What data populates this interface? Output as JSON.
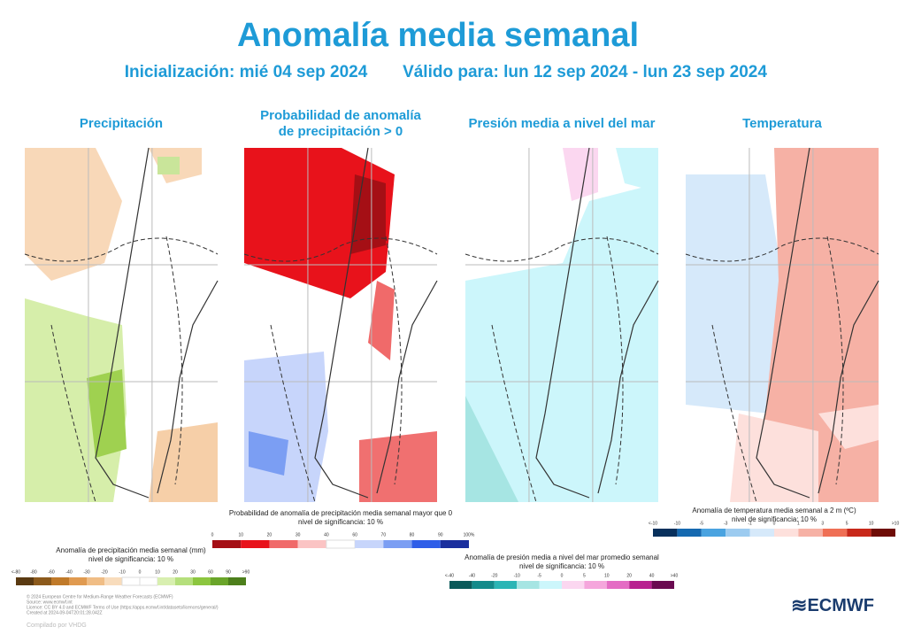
{
  "header": {
    "title": "Anomalía media semanal",
    "init": "Inicialización: mié 04 sep 2024",
    "valid": "Válido para: lun 12 sep 2024 - lun 23 sep 2024"
  },
  "panels": [
    {
      "title": "Precipitación",
      "legend": "Anomalía de precipitación media semanal (mm)",
      "sig": "nivel de significancia: 10 %",
      "ticks": [
        "<-80",
        "-80",
        "-60",
        "-40",
        "-30",
        "-20",
        "-10",
        "0",
        "10",
        "20",
        "30",
        "60",
        "90",
        ">90"
      ],
      "colors": [
        "#5a3a12",
        "#8c5a1c",
        "#c07a2a",
        "#e09a50",
        "#f0bd85",
        "#f8dcbc",
        "#ffffff",
        "#ffffff",
        "#d8efb0",
        "#b5df7c",
        "#8cc63f",
        "#6aa52a",
        "#4d7f1c"
      ]
    },
    {
      "title": "Probabilidad de anomalía de precipitación > 0",
      "legend": "Probabilidad de anomalía de precipitación media semanal mayor que 0",
      "sig": "nivel de significancia: 10 %",
      "ticks": [
        "0",
        "10",
        "20",
        "30",
        "40",
        "60",
        "70",
        "80",
        "90",
        "100%"
      ],
      "colors": [
        "#a50f15",
        "#e8121b",
        "#f06a6a",
        "#fbc4c4",
        "#ffffff",
        "#c7d5fb",
        "#7b9ef3",
        "#2f5ee8",
        "#1a2f9e"
      ]
    },
    {
      "title": "Presión media a nivel del mar",
      "legend": "Anomalía de presión media a nivel del mar promedio semanal",
      "sig": "nivel de significancia: 10 %",
      "ticks": [
        "<-40",
        "-40",
        "-20",
        "-10",
        "-5",
        "0",
        "5",
        "10",
        "20",
        "40",
        ">40"
      ],
      "colors": [
        "#0b5a5a",
        "#138a8a",
        "#2bb5b5",
        "#a6e5e3",
        "#ccf6fb",
        "#fbd7f0",
        "#f5a6dc",
        "#e46cc4",
        "#b8208f",
        "#6a0a50"
      ]
    },
    {
      "title": "Temperatura",
      "legend": "Anomalía de temperatura media semanal a 2 m (ºC)",
      "sig": "nivel de significancia: 10 %",
      "ticks": [
        "<-10",
        "-10",
        "-5",
        "-3",
        "-1",
        "0",
        "1",
        "3",
        "5",
        "10",
        ">10"
      ],
      "colors": [
        "#08305c",
        "#1569b0",
        "#4aa3e0",
        "#9ccbf0",
        "#d6e9fa",
        "#fde0dc",
        "#f6b1a5",
        "#ef6f55",
        "#c8281a",
        "#6e0c06"
      ]
    }
  ],
  "footer": {
    "lines": [
      "© 2024 European Centre for Medium-Range Weather Forecasts (ECMWF)",
      "Source: www.ecmwf.int",
      "Licence: CC BY 4.0 and ECMWF Terms of Use (https://apps.ecmwf.int/datasets/licences/general/)",
      "Created at 2024-09-04T20:01:28.042Z"
    ],
    "compiled": "Compilado por VHDG",
    "logo": "ECMWF"
  }
}
